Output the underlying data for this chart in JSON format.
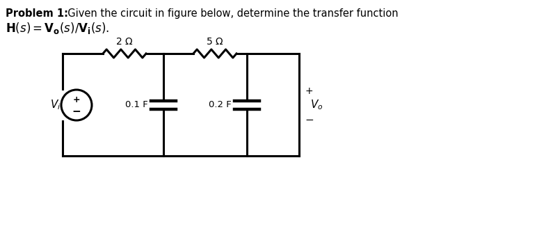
{
  "background_color": "#ffffff",
  "text_color": "#000000",
  "circuit_color": "#000000",
  "line_width": 2.2,
  "fig_width": 7.85,
  "fig_height": 3.32,
  "title_bold": "Problem 1:",
  "title_rest": "  Given the circuit in figure below, determine the transfer function",
  "title_line2": "$\\mathbf{H}(s) = \\mathbf{V_o}(s)/\\mathbf{V_i}(s).$"
}
